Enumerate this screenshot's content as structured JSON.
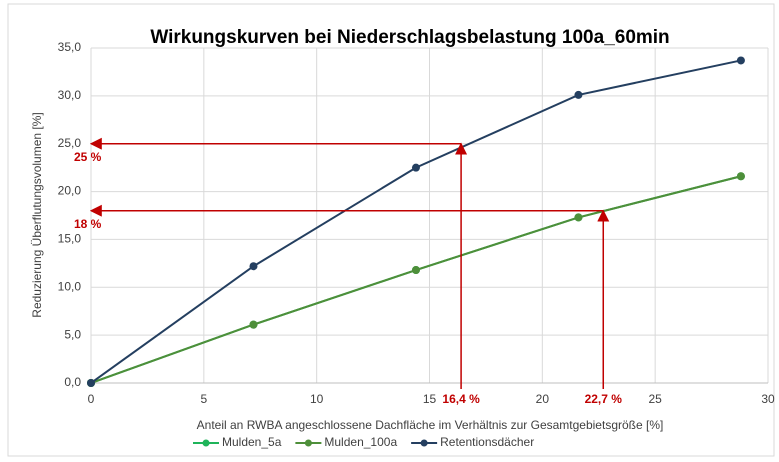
{
  "chart_data": {
    "type": "line",
    "title": "Wirkungskurven bei Niederschlagsbelastung 100a_60min",
    "x_label": "Anteil an RWBA angeschlossene Dachfläche im Verhältnis zur Gesamtgebietsgröße [%]",
    "y_label": "Reduzierung Überflutungsvolumen [%]",
    "x": [
      0,
      7.2,
      14.4,
      21.6,
      28.8
    ],
    "series": [
      {
        "name": "Mulden_5a",
        "color": "#1fb45a",
        "values": [
          0,
          6.1,
          11.8,
          17.3,
          21.6
        ]
      },
      {
        "name": "Mulden_100a",
        "color": "#4e8f3a",
        "values": [
          0,
          6.1,
          11.8,
          17.3,
          21.6
        ]
      },
      {
        "name": "Retentionsdächer",
        "color": "#243f60",
        "values": [
          0,
          12.2,
          22.5,
          30.1,
          33.7
        ]
      }
    ],
    "xlim": [
      0,
      30
    ],
    "xticks": [
      0,
      5,
      10,
      15,
      20,
      25,
      30
    ],
    "ylim": [
      0,
      35
    ],
    "yticks": [
      {
        "value": 0,
        "label": "0,0"
      },
      {
        "value": 5,
        "label": "5,0"
      },
      {
        "value": 10,
        "label": "10,0"
      },
      {
        "value": 15,
        "label": "15,0"
      },
      {
        "value": 20,
        "label": "20,0"
      },
      {
        "value": 25,
        "label": "25,0"
      },
      {
        "value": 30,
        "label": "30,0"
      },
      {
        "value": 35,
        "label": "35,0"
      }
    ],
    "grid": true,
    "legend": "bottom",
    "annotation_color": "#c00000",
    "annotations": [
      {
        "x": 16.4,
        "y": 25,
        "x_label": "16,4 %",
        "y_label": "25 %"
      },
      {
        "x": 22.7,
        "y": 18,
        "x_label": "22,7 %",
        "y_label": "18 %"
      }
    ]
  }
}
